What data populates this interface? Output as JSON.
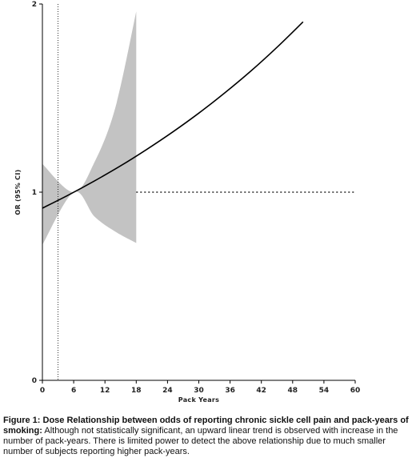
{
  "chart_data": {
    "type": "line",
    "xlabel": "Pack Years",
    "ylabel": "OR (95% CI)",
    "xlim": [
      0,
      60
    ],
    "ylim": [
      0,
      2
    ],
    "x_ticks": [
      0,
      6,
      12,
      18,
      24,
      30,
      36,
      42,
      48,
      54,
      60
    ],
    "y_ticks": [
      0,
      1,
      2
    ],
    "series": [
      {
        "type": "line",
        "x": [
          0,
          5,
          10,
          15,
          20,
          25,
          30,
          35,
          40,
          45,
          50
        ],
        "y": [
          0.915,
          0.985,
          1.06,
          1.14,
          1.227,
          1.32,
          1.42,
          1.528,
          1.644,
          1.77,
          1.905
        ]
      },
      {
        "type": "band",
        "x": [
          0,
          6,
          10,
          14,
          18
        ],
        "upper": [
          1.15,
          1.0,
          1.16,
          1.45,
          1.96
        ],
        "lower": [
          0.72,
          1.0,
          0.87,
          0.79,
          0.73
        ]
      }
    ],
    "reference_lines": [
      {
        "orientation": "horizontal",
        "y": 1,
        "x_range": [
          18,
          60
        ],
        "style": "dotted"
      },
      {
        "orientation": "vertical",
        "x": 3,
        "style": "dotted"
      }
    ],
    "colors": {
      "line": "#000000",
      "band": "#c3c3c3",
      "axis": "#000000"
    },
    "grid": false
  },
  "caption": {
    "bold": "Figure 1: Dose Relationship between odds of reporting chronic sickle cell pain and pack-years of smoking:",
    "text": " Although not statistically significant, an upward linear trend is observed with increase in the number of pack-years. There is limited power to detect the above relationship due to much smaller number of subjects reporting higher pack-years."
  }
}
